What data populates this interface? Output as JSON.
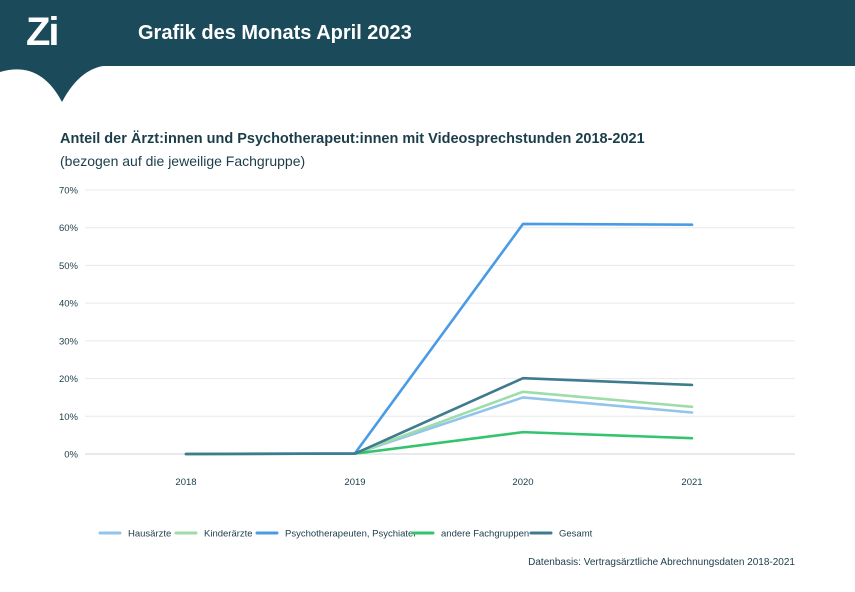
{
  "header": {
    "logo_text": "Zi",
    "title": "Grafik des Monats April 2023",
    "background_color": "#1b4a5a"
  },
  "chart_data": {
    "type": "line",
    "title": "Anteil der Ärzt:innen und Psychotherapeut:innen mit Videosprechstunden 2018-2021",
    "subtitle": "(bezogen auf die jeweilige Fachgruppe)",
    "xlabel": "",
    "ylabel": "",
    "x": [
      "2018",
      "2019",
      "2020",
      "2021"
    ],
    "ylim": [
      0,
      70
    ],
    "yticks": [
      "0%",
      "10%",
      "20%",
      "30%",
      "40%",
      "50%",
      "60%",
      "70%"
    ],
    "grid": true,
    "legend_position": "bottom",
    "series": [
      {
        "name": "Hausärzte",
        "color": "#93c5ec",
        "values": [
          0,
          0.1,
          15,
          11
        ]
      },
      {
        "name": "Kinderärzte",
        "color": "#9edda9",
        "values": [
          0,
          0.1,
          16.5,
          12.5
        ]
      },
      {
        "name": "Psychotherapeuten, Psychiater",
        "color": "#4a9be6",
        "values": [
          0,
          0.2,
          61,
          60.8
        ]
      },
      {
        "name": "andere Fachgruppen",
        "color": "#33c46e",
        "values": [
          0,
          0.1,
          5.8,
          4.2
        ]
      },
      {
        "name": "Gesamt",
        "color": "#3f7b8c",
        "values": [
          0,
          0.1,
          20.1,
          18.3
        ]
      }
    ]
  },
  "source": "Datenbasis: Vertragsärztliche Abrechnungsdaten 2018-2021"
}
